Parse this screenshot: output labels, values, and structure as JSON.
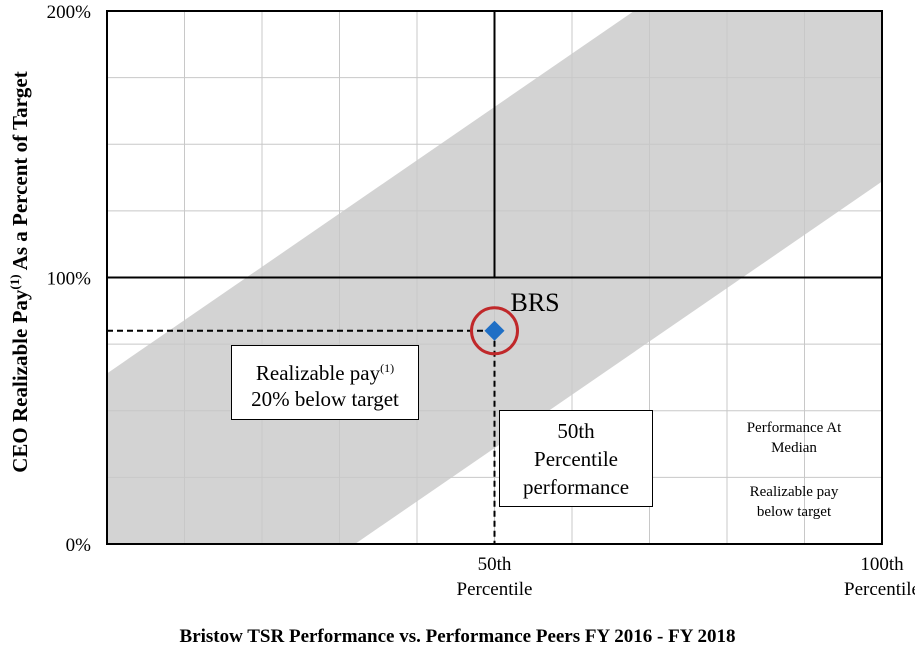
{
  "chart_data": {
    "type": "area",
    "title": "",
    "ylabel_main": "CEO Realizable Pay",
    "ylabel_sup": "(1)",
    "ylabel_rest": " As a Percent of Target",
    "xlabel": "Bristow TSR Performance vs. Performance Peers FY 2016 - FY 2018",
    "x_range": [
      0,
      100
    ],
    "y_range": [
      0,
      200
    ],
    "y_ticks": [
      {
        "value": 0,
        "label": "0%"
      },
      {
        "value": 100,
        "label": "100%"
      },
      {
        "value": 200,
        "label": "200%"
      }
    ],
    "x_ticks": [
      {
        "value": 50,
        "line1": "50th",
        "line2": "Percentile"
      },
      {
        "value": 100,
        "line1": "100th",
        "line2": "Percentile"
      }
    ],
    "grid": true,
    "alignment_band": {
      "upper": [
        {
          "x": 0,
          "y": 64
        },
        {
          "x": 68,
          "y": 200
        }
      ],
      "lower": [
        {
          "x": 32,
          "y": 0
        },
        {
          "x": 100,
          "y": 136
        }
      ]
    },
    "points": [
      {
        "label": "BRS",
        "x": 50,
        "y": 80,
        "color": "#1f6fc5",
        "highlight_color": "#c0282a"
      }
    ],
    "annotations": {
      "pay_box_line1": "Realizable pay",
      "pay_box_sup": "(1)",
      "pay_box_line2": "20% below target",
      "perf_box_lines": [
        "50th",
        "Percentile",
        "performance"
      ],
      "quadrant_note": {
        "line1": "Performance At",
        "line2": "Median",
        "line3": "Realizable  pay",
        "line4": "below target"
      }
    },
    "colors": {
      "band": "#d3d3d3",
      "grid": "#c8c8c8",
      "axis": "#000000"
    }
  }
}
